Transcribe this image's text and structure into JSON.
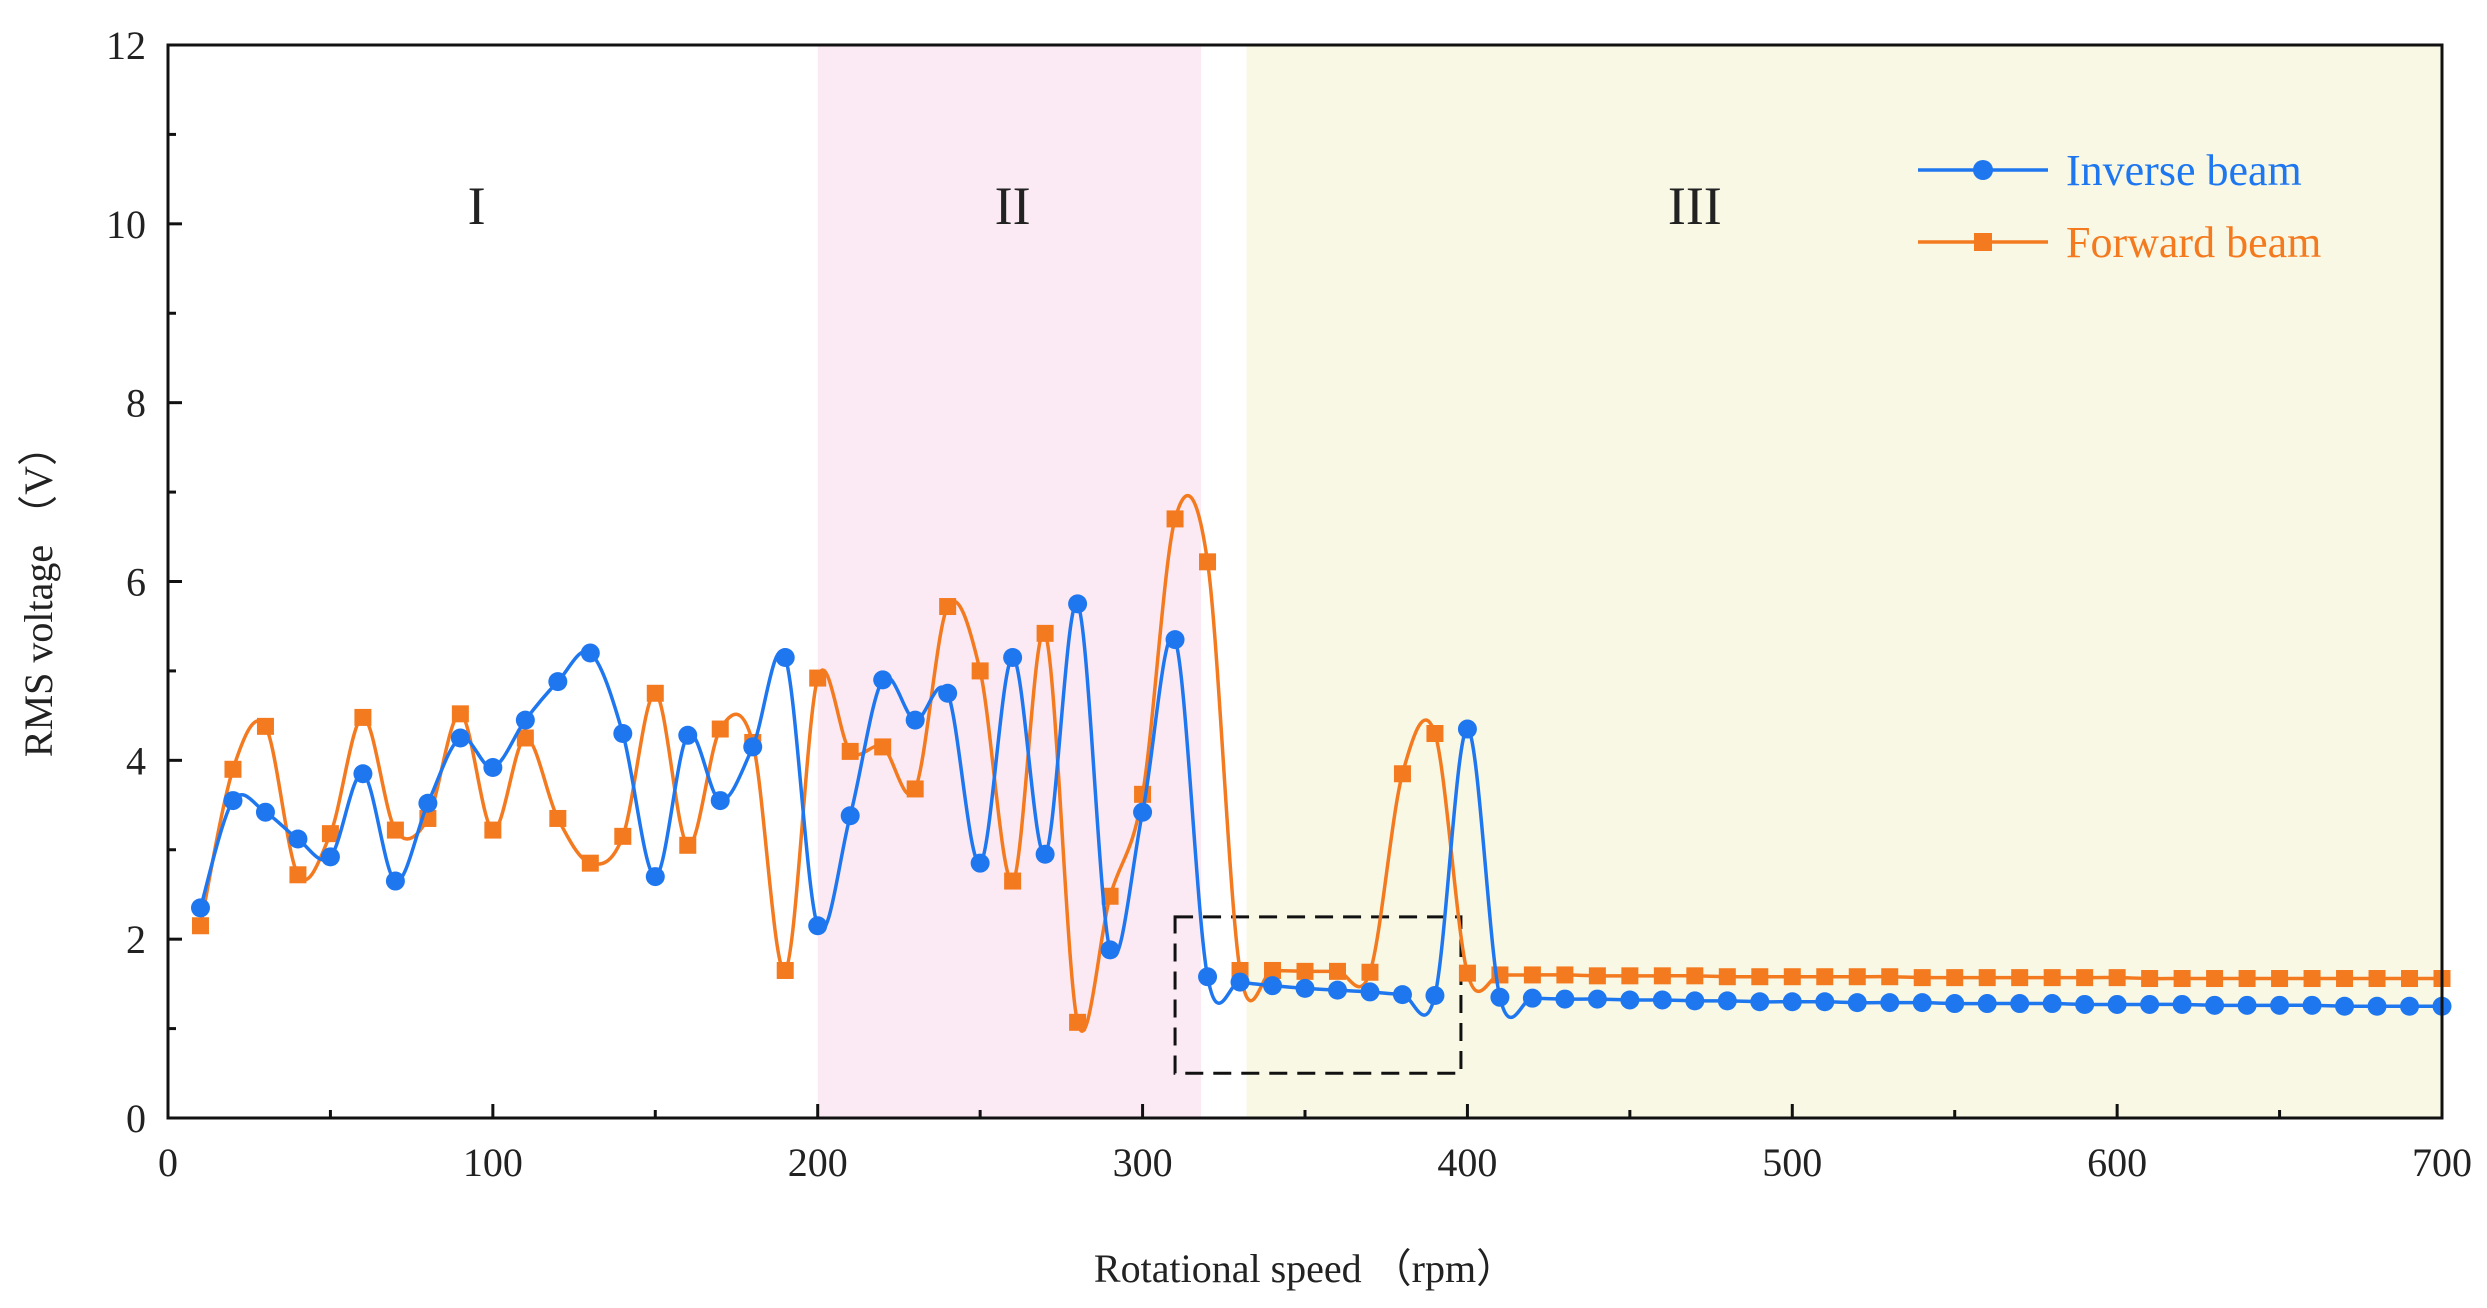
{
  "chart_data": {
    "type": "line",
    "title": "",
    "xlabel": "Rotational speed （rpm）",
    "ylabel": "RMS voltage （V）",
    "xlim": [
      0,
      700
    ],
    "ylim": [
      0,
      12
    ],
    "xticks": [
      0,
      100,
      200,
      300,
      400,
      500,
      600,
      700
    ],
    "yticks": [
      0,
      2,
      4,
      6,
      8,
      10,
      12
    ],
    "grid": false,
    "legend_position": "top-right",
    "regions": [
      {
        "label": "I",
        "x_start": 0,
        "x_end": 200,
        "color": "#ffffff",
        "label_x": 95,
        "label_y": 10.2
      },
      {
        "label": "II",
        "x_start": 200,
        "x_end": 318,
        "color": "#fbeaf3",
        "label_x": 260,
        "label_y": 10.2
      },
      {
        "label": "III",
        "x_start": 332,
        "x_end": 700,
        "color": "#f8f8e4",
        "label_x": 470,
        "label_y": 10.2
      }
    ],
    "highlight_box": {
      "x_start": 310,
      "x_end": 398,
      "y_start": 0.5,
      "y_end": 2.25,
      "style": "dashed"
    },
    "x": [
      10,
      20,
      30,
      40,
      50,
      60,
      70,
      80,
      90,
      100,
      110,
      120,
      130,
      140,
      150,
      160,
      170,
      180,
      190,
      200,
      210,
      220,
      230,
      240,
      250,
      260,
      270,
      280,
      290,
      300,
      310,
      320,
      330,
      340,
      350,
      360,
      370,
      380,
      390,
      400,
      410,
      420,
      430,
      440,
      450,
      460,
      470,
      480,
      490,
      500,
      510,
      520,
      530,
      540,
      550,
      560,
      570,
      580,
      590,
      600,
      610,
      620,
      630,
      640,
      650,
      660,
      670,
      680,
      690,
      700
    ],
    "series": [
      {
        "name": "Inverse beam",
        "color": "#1f77f0",
        "marker": "circle",
        "values": [
          2.35,
          3.55,
          3.42,
          3.12,
          2.92,
          3.85,
          2.65,
          3.52,
          4.25,
          3.92,
          4.45,
          4.88,
          5.2,
          4.3,
          2.7,
          4.28,
          3.55,
          4.15,
          5.15,
          2.15,
          3.38,
          4.9,
          4.45,
          4.75,
          2.85,
          5.15,
          2.95,
          5.75,
          1.88,
          3.42,
          5.35,
          1.58,
          1.52,
          1.48,
          1.45,
          1.43,
          1.41,
          1.38,
          1.37,
          4.35,
          1.35,
          1.34,
          1.33,
          1.33,
          1.32,
          1.32,
          1.31,
          1.31,
          1.3,
          1.3,
          1.3,
          1.29,
          1.29,
          1.29,
          1.28,
          1.28,
          1.28,
          1.28,
          1.27,
          1.27,
          1.27,
          1.27,
          1.26,
          1.26,
          1.26,
          1.26,
          1.25,
          1.25,
          1.25,
          1.25
        ]
      },
      {
        "name": "Forward beam",
        "color": "#f47a20",
        "marker": "square",
        "values": [
          2.15,
          3.9,
          4.38,
          2.72,
          3.18,
          4.48,
          3.22,
          3.35,
          4.52,
          3.22,
          4.25,
          3.35,
          2.85,
          3.15,
          4.75,
          3.05,
          4.35,
          4.2,
          1.65,
          4.92,
          4.1,
          4.15,
          3.68,
          5.72,
          5.0,
          2.65,
          5.42,
          1.07,
          2.48,
          3.62,
          6.7,
          6.22,
          1.65,
          1.65,
          1.64,
          1.64,
          1.63,
          3.85,
          4.3,
          1.62,
          1.6,
          1.6,
          1.6,
          1.59,
          1.59,
          1.59,
          1.59,
          1.58,
          1.58,
          1.58,
          1.58,
          1.58,
          1.58,
          1.57,
          1.57,
          1.57,
          1.57,
          1.57,
          1.57,
          1.57,
          1.56,
          1.56,
          1.56,
          1.56,
          1.56,
          1.56,
          1.56,
          1.56,
          1.56,
          1.56
        ]
      }
    ]
  }
}
